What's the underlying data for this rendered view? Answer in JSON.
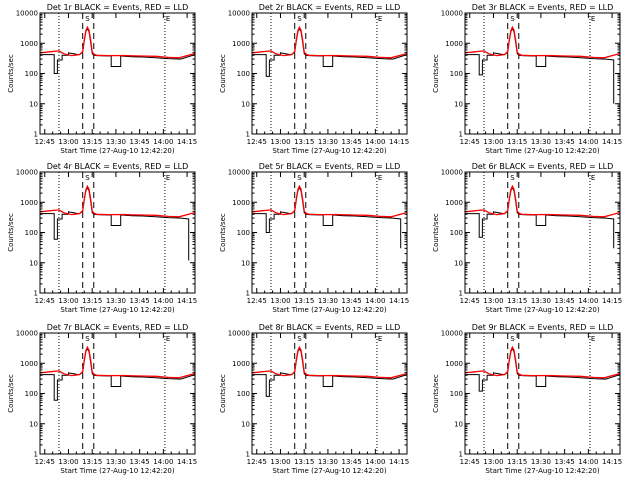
{
  "chart_data": {
    "type": "line",
    "layout": "3x3 grid",
    "x_tick_labels": [
      "12:45",
      "13:00",
      "13:15",
      "13:30",
      "13:45",
      "14:00",
      "14:15"
    ],
    "x_ticks_minutes": [
      0,
      15,
      30,
      45,
      60,
      75,
      90
    ],
    "xlim_minutes": [
      -3,
      95
    ],
    "x_unit_note": "minutes after 12:45",
    "ylabel": "Counts/sec",
    "xlabel": "Start Time (27-Aug-10 12:42:20)",
    "yscale": "log",
    "ylim": [
      1,
      10000
    ],
    "y_tick_labels": [
      "1",
      "10",
      "100",
      "1000",
      "10000"
    ],
    "y_tick_values": [
      1,
      10,
      100,
      1000,
      10000
    ],
    "dotted_lines_minutes": [
      9,
      76
    ],
    "dashed_lines_minutes": [
      24,
      31
    ],
    "flag_marker": "S",
    "flag_minutes": 27,
    "end_marker": "E",
    "end_minutes": 78,
    "series": [
      {
        "name": "Events",
        "color": "#000000",
        "x": [
          -3,
          6,
          6,
          8,
          8,
          11,
          11,
          15,
          15,
          20,
          22,
          24,
          25,
          26,
          27,
          28,
          29,
          30,
          31,
          33,
          40,
          42,
          42,
          48,
          48,
          55,
          62,
          70,
          78,
          86,
          95
        ],
        "y": [
          420,
          420,
          150,
          150,
          280,
          280,
          400,
          400,
          480,
          430,
          420,
          500,
          1200,
          2400,
          3000,
          2400,
          1100,
          450,
          400,
          390,
          380,
          380,
          170,
          170,
          380,
          360,
          350,
          330,
          310,
          300,
          420
        ]
      },
      {
        "name": "LLD",
        "color": "#ff0000",
        "x": [
          -3,
          3,
          9,
          12,
          17,
          22,
          24,
          25,
          26,
          27,
          28,
          29,
          30,
          31,
          33,
          40,
          50,
          60,
          70,
          78,
          85,
          95
        ],
        "y": [
          480,
          520,
          560,
          450,
          390,
          420,
          530,
          1300,
          2600,
          3400,
          2700,
          1300,
          520,
          430,
          400,
          390,
          395,
          380,
          370,
          340,
          330,
          460
        ]
      }
    ],
    "panels": [
      {
        "title": "Det 1r BLACK = Events, RED = LLD",
        "early_drop_to": 100,
        "final_drop_to": null
      },
      {
        "title": "Det 2r BLACK = Events, RED = LLD",
        "early_drop_to": 80,
        "final_drop_to": null
      },
      {
        "title": "Det 3r BLACK = Events, RED = LLD",
        "early_drop_to": 90,
        "final_drop_to": 10
      },
      {
        "title": "Det 4r BLACK = Events, RED = LLD",
        "early_drop_to": 60,
        "final_drop_to": 12
      },
      {
        "title": "Det 5r BLACK = Events, RED = LLD",
        "early_drop_to": 100,
        "final_drop_to": 30
      },
      {
        "title": "Det 6r BLACK = Events, RED = LLD",
        "early_drop_to": 70,
        "final_drop_to": 30
      },
      {
        "title": "Det 7r BLACK = Events, RED = LLD",
        "early_drop_to": 60,
        "final_drop_to": null
      },
      {
        "title": "Det 8r BLACK = Events, RED = LLD",
        "early_drop_to": 80,
        "final_drop_to": null
      },
      {
        "title": "Det 9r BLACK = Events, RED = LLD",
        "early_drop_to": 120,
        "final_drop_to": null
      }
    ]
  }
}
